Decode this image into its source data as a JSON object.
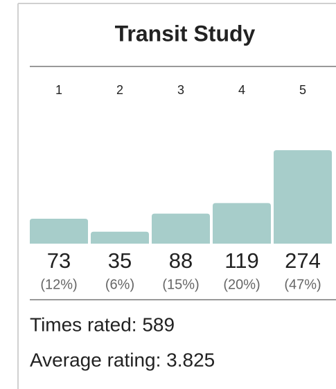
{
  "chart_data": {
    "type": "bar",
    "title": "Transit Study",
    "categories": [
      "1",
      "2",
      "3",
      "4",
      "5"
    ],
    "values": [
      73,
      35,
      88,
      119,
      274
    ],
    "percent_labels": [
      "(12%)",
      "(6%)",
      "(15%)",
      "(20%)",
      "(47%)"
    ],
    "color": "#a7cdca",
    "times_rated": "Times rated: 589",
    "average_rating": "Average rating: 3.825"
  }
}
